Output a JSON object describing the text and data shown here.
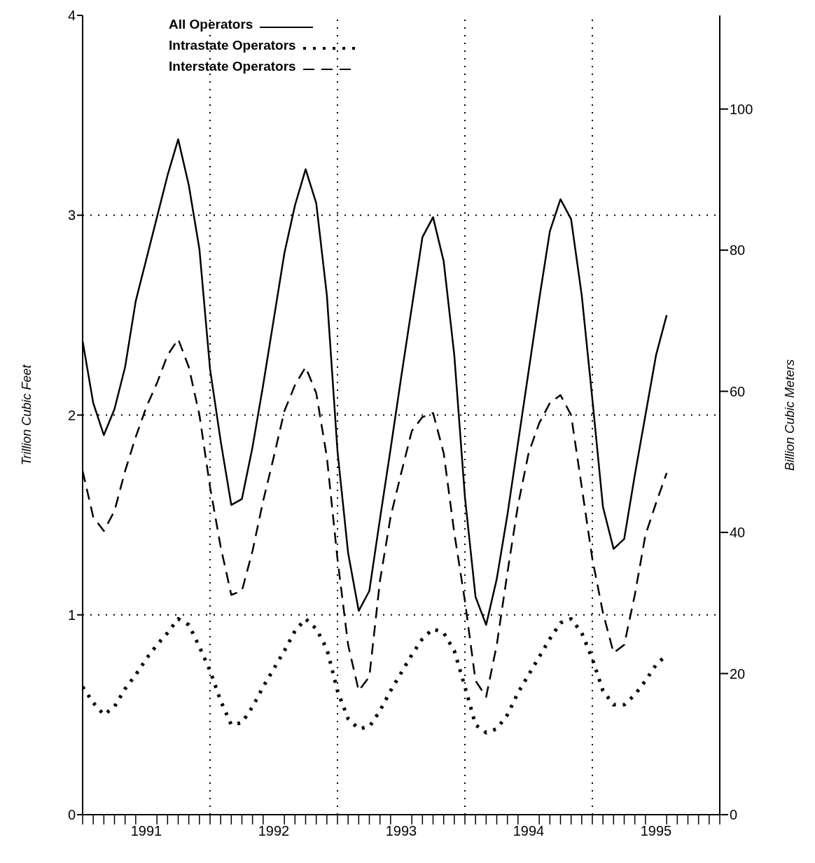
{
  "chart_data": {
    "type": "line",
    "ylabel": "Trillion Cubic Feet",
    "y2label": "Billion Cubic Meters",
    "x": [
      "1991-01",
      "1991-02",
      "1991-03",
      "1991-04",
      "1991-05",
      "1991-06",
      "1991-07",
      "1991-08",
      "1991-09",
      "1991-10",
      "1991-11",
      "1991-12",
      "1992-01",
      "1992-02",
      "1992-03",
      "1992-04",
      "1992-05",
      "1992-06",
      "1992-07",
      "1992-08",
      "1992-09",
      "1992-10",
      "1992-11",
      "1992-12",
      "1993-01",
      "1993-02",
      "1993-03",
      "1993-04",
      "1993-05",
      "1993-06",
      "1993-07",
      "1993-08",
      "1993-09",
      "1993-10",
      "1993-11",
      "1993-12",
      "1994-01",
      "1994-02",
      "1994-03",
      "1994-04",
      "1994-05",
      "1994-06",
      "1994-07",
      "1994-08",
      "1994-09",
      "1994-10",
      "1994-11",
      "1994-12",
      "1995-01",
      "1995-02",
      "1995-03",
      "1995-04",
      "1995-05",
      "1995-06",
      "1995-07",
      "1995-08"
    ],
    "series": [
      {
        "name": "All Operators",
        "color": "#000000",
        "line_style": "solid",
        "values": [
          2.37,
          2.06,
          1.9,
          2.03,
          2.24,
          2.57,
          2.78,
          2.99,
          3.2,
          3.38,
          3.15,
          2.83,
          2.23,
          1.87,
          1.55,
          1.58,
          1.84,
          2.15,
          2.48,
          2.81,
          3.05,
          3.23,
          3.06,
          2.6,
          1.82,
          1.31,
          1.02,
          1.12,
          1.48,
          1.83,
          2.19,
          2.54,
          2.89,
          2.99,
          2.77,
          2.3,
          1.59,
          1.09,
          0.95,
          1.18,
          1.5,
          1.86,
          2.22,
          2.58,
          2.92,
          3.08,
          2.98,
          2.6,
          2.08,
          1.54,
          1.33,
          1.38,
          1.7,
          2.0,
          2.3,
          2.5
        ]
      },
      {
        "name": "Intrastate Operators",
        "color": "#000000",
        "line_style": "dotted",
        "values": [
          0.64,
          0.56,
          0.5,
          0.54,
          0.63,
          0.7,
          0.78,
          0.85,
          0.91,
          0.98,
          0.95,
          0.84,
          0.72,
          0.57,
          0.45,
          0.46,
          0.54,
          0.64,
          0.73,
          0.82,
          0.92,
          0.98,
          0.93,
          0.83,
          0.62,
          0.48,
          0.43,
          0.44,
          0.52,
          0.62,
          0.71,
          0.8,
          0.88,
          0.93,
          0.91,
          0.82,
          0.64,
          0.45,
          0.41,
          0.43,
          0.5,
          0.61,
          0.7,
          0.79,
          0.88,
          0.96,
          0.98,
          0.91,
          0.78,
          0.62,
          0.55,
          0.55,
          0.6,
          0.67,
          0.75,
          0.8
        ]
      },
      {
        "name": "Interstate Operators",
        "color": "#000000",
        "line_style": "dashed",
        "values": [
          1.72,
          1.49,
          1.42,
          1.52,
          1.72,
          1.89,
          2.04,
          2.16,
          2.3,
          2.38,
          2.24,
          2.0,
          1.64,
          1.34,
          1.1,
          1.12,
          1.32,
          1.57,
          1.79,
          2.02,
          2.15,
          2.24,
          2.11,
          1.79,
          1.28,
          0.85,
          0.62,
          0.69,
          1.17,
          1.49,
          1.71,
          1.92,
          1.99,
          2.01,
          1.81,
          1.41,
          1.07,
          0.67,
          0.59,
          0.85,
          1.21,
          1.55,
          1.81,
          1.96,
          2.06,
          2.1,
          2.0,
          1.64,
          1.28,
          1.01,
          0.81,
          0.85,
          1.1,
          1.4,
          1.56,
          1.71
        ]
      }
    ],
    "xlim": [
      "1991-01",
      "1996-01"
    ],
    "xticks": [
      {
        "value": "1991-07",
        "label": "1991"
      },
      {
        "value": "1992-07",
        "label": "1992"
      },
      {
        "value": "1993-07",
        "label": "1993"
      },
      {
        "value": "1994-07",
        "label": "1994"
      },
      {
        "value": "1995-07",
        "label": "1995"
      },
      {
        "value": "1991-01",
        "label": null
      },
      {
        "value": "1991-02",
        "label": null
      },
      {
        "value": "1991-03",
        "label": null
      },
      {
        "value": "1991-04",
        "label": null
      },
      {
        "value": "1991-05",
        "label": null
      },
      {
        "value": "1991-06",
        "label": null
      },
      {
        "value": "1991-08",
        "label": null
      },
      {
        "value": "1991-09",
        "label": null
      },
      {
        "value": "1991-10",
        "label": null
      },
      {
        "value": "1991-11",
        "label": null
      },
      {
        "value": "1991-12",
        "label": null
      },
      {
        "value": "1992-01",
        "label": null
      },
      {
        "value": "1992-02",
        "label": null
      },
      {
        "value": "1992-03",
        "label": null
      },
      {
        "value": "1992-04",
        "label": null
      },
      {
        "value": "1992-05",
        "label": null
      },
      {
        "value": "1992-06",
        "label": null
      },
      {
        "value": "1992-08",
        "label": null
      },
      {
        "value": "1992-09",
        "label": null
      },
      {
        "value": "1992-10",
        "label": null
      },
      {
        "value": "1992-11",
        "label": null
      },
      {
        "value": "1992-12",
        "label": null
      },
      {
        "value": "1993-01",
        "label": null
      },
      {
        "value": "1993-02",
        "label": null
      },
      {
        "value": "1993-03",
        "label": null
      },
      {
        "value": "1993-04",
        "label": null
      },
      {
        "value": "1993-05",
        "label": null
      },
      {
        "value": "1993-06",
        "label": null
      },
      {
        "value": "1993-08",
        "label": null
      },
      {
        "value": "1993-09",
        "label": null
      },
      {
        "value": "1993-10",
        "label": null
      },
      {
        "value": "1993-11",
        "label": null
      },
      {
        "value": "1993-12",
        "label": null
      },
      {
        "value": "1994-01",
        "label": null
      },
      {
        "value": "1994-02",
        "label": null
      },
      {
        "value": "1994-03",
        "label": null
      },
      {
        "value": "1994-04",
        "label": null
      },
      {
        "value": "1994-05",
        "label": null
      },
      {
        "value": "1994-06",
        "label": null
      },
      {
        "value": "1994-08",
        "label": null
      },
      {
        "value": "1994-09",
        "label": null
      },
      {
        "value": "1994-10",
        "label": null
      },
      {
        "value": "1994-11",
        "label": null
      },
      {
        "value": "1994-12",
        "label": null
      },
      {
        "value": "1995-01",
        "label": null
      },
      {
        "value": "1995-02",
        "label": null
      },
      {
        "value": "1995-03",
        "label": null
      },
      {
        "value": "1995-04",
        "label": null
      },
      {
        "value": "1995-05",
        "label": null
      },
      {
        "value": "1995-06",
        "label": null
      },
      {
        "value": "1995-08",
        "label": null
      },
      {
        "value": "1995-09",
        "label": null
      },
      {
        "value": "1995-10",
        "label": null
      },
      {
        "value": "1995-11",
        "label": null
      },
      {
        "value": "1995-12",
        "label": null
      },
      {
        "value": "1996-01",
        "label": null
      }
    ],
    "ylim": [
      0,
      4
    ],
    "yticks": [
      0,
      1,
      2,
      3,
      4
    ],
    "y2lim": [
      0,
      113.27
    ],
    "y2ticks": [
      0,
      20,
      40,
      60,
      80,
      100
    ],
    "ref_lines": [
      {
        "axis": "x",
        "value": "1992-01",
        "line_style": "dotted"
      },
      {
        "axis": "x",
        "value": "1993-01",
        "line_style": "dotted"
      },
      {
        "axis": "x",
        "value": "1994-01",
        "line_style": "dotted"
      },
      {
        "axis": "x",
        "value": "1995-01",
        "line_style": "dotted"
      }
    ],
    "grid": "y",
    "legend": "top left",
    "marker": "none"
  }
}
